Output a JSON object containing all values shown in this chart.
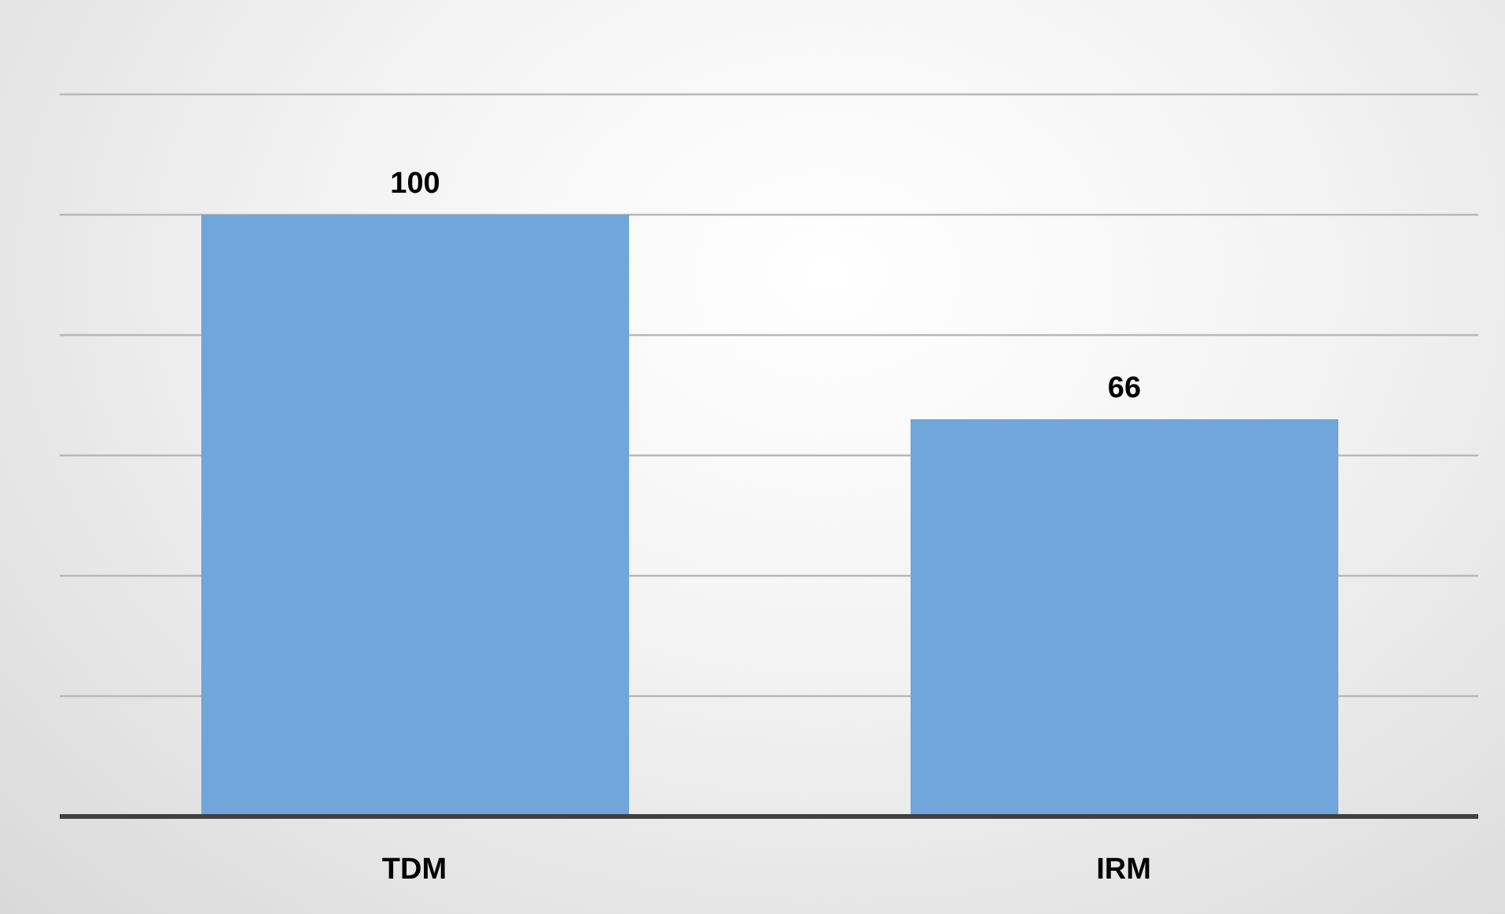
{
  "chart_data": {
    "type": "bar",
    "categories": [
      "TDM",
      "IRM"
    ],
    "values": [
      100,
      66
    ],
    "color": "#70a6da",
    "ylim": [
      0,
      120
    ],
    "yticks": [
      {
        "value": 0,
        "label": null
      },
      {
        "value": 20,
        "label": null
      },
      {
        "value": 40,
        "label": null
      },
      {
        "value": 60,
        "label": null
      },
      {
        "value": 80,
        "label": null
      },
      {
        "value": 100,
        "label": null
      },
      {
        "value": 120,
        "label": null
      }
    ],
    "grid": "y",
    "tick_labels": "x",
    "data_labels": true
  }
}
